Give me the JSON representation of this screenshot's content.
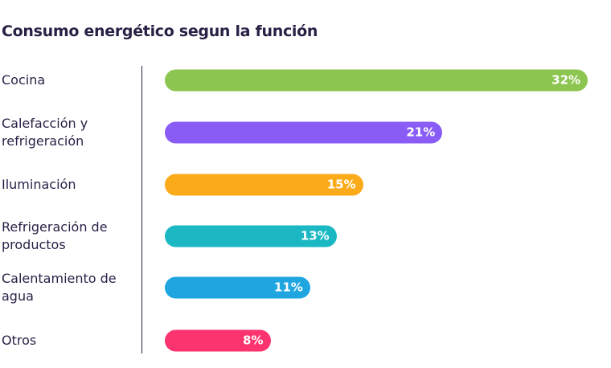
{
  "chart_data": {
    "type": "bar",
    "orientation": "horizontal",
    "title": "Consumo energético segun la función",
    "categories": [
      "Cocina",
      "Calefacción y refrigeración",
      "Iluminación",
      "Refrigeración de productos",
      "Calentamiento de agua",
      "Otros"
    ],
    "values": [
      32,
      21,
      15,
      13,
      11,
      8
    ],
    "value_labels": [
      "32%",
      "21%",
      "15%",
      "13%",
      "11%",
      "8%"
    ],
    "colors": [
      "#8cc54f",
      "#8a5cf6",
      "#fbab1a",
      "#1bb8c4",
      "#1fa6e0",
      "#fb3470"
    ]
  }
}
